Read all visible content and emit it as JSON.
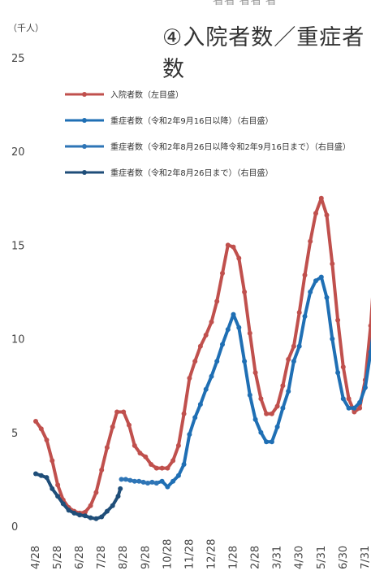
{
  "header": {
    "clipped_text": "者者 者者 者",
    "unit_label": "（千人）",
    "title": "④入院者数／重症者数"
  },
  "chart_data": {
    "type": "line",
    "title": "④入院者数／重症者数",
    "ylabel": "（千人）",
    "ylim": [
      0,
      25
    ],
    "yticks": [
      "0",
      "5",
      "10",
      "15",
      "20",
      "25"
    ],
    "x": [
      "4/28",
      "5/28",
      "6/28",
      "7/28",
      "8/28",
      "9/28",
      "10/28",
      "11/28",
      "12/28",
      "1/28",
      "2/28",
      "3/31",
      "4/30",
      "5/31",
      "6/30",
      "7/31"
    ],
    "grid": false,
    "legend_position": "top-left",
    "series": [
      {
        "name": "入院者数（左目盛）",
        "color": "#c0504d",
        "points": [
          [
            0,
            5.6
          ],
          [
            0.25,
            5.2
          ],
          [
            0.5,
            4.6
          ],
          [
            0.75,
            3.5
          ],
          [
            1,
            2.2
          ],
          [
            1.25,
            1.4
          ],
          [
            1.5,
            1.0
          ],
          [
            1.75,
            0.8
          ],
          [
            2,
            0.7
          ],
          [
            2.25,
            0.75
          ],
          [
            2.5,
            1.1
          ],
          [
            2.75,
            1.8
          ],
          [
            3,
            3.0
          ],
          [
            3.25,
            4.2
          ],
          [
            3.5,
            5.3
          ],
          [
            3.7,
            6.1
          ],
          [
            4,
            6.1
          ],
          [
            4.25,
            5.4
          ],
          [
            4.5,
            4.3
          ],
          [
            4.75,
            3.9
          ],
          [
            5,
            3.7
          ],
          [
            5.25,
            3.3
          ],
          [
            5.5,
            3.1
          ],
          [
            5.75,
            3.1
          ],
          [
            6,
            3.1
          ],
          [
            6.25,
            3.5
          ],
          [
            6.5,
            4.3
          ],
          [
            6.75,
            6.0
          ],
          [
            7,
            7.9
          ],
          [
            7.25,
            8.8
          ],
          [
            7.5,
            9.6
          ],
          [
            7.75,
            10.2
          ],
          [
            8,
            10.9
          ],
          [
            8.25,
            12.0
          ],
          [
            8.5,
            13.5
          ],
          [
            8.75,
            15.0
          ],
          [
            9,
            14.9
          ],
          [
            9.25,
            14.3
          ],
          [
            9.5,
            12.5
          ],
          [
            9.75,
            10.3
          ],
          [
            10,
            8.2
          ],
          [
            10.25,
            6.8
          ],
          [
            10.5,
            6.0
          ],
          [
            10.75,
            6.0
          ],
          [
            11,
            6.4
          ],
          [
            11.25,
            7.5
          ],
          [
            11.5,
            8.9
          ],
          [
            11.75,
            9.6
          ],
          [
            12,
            11.4
          ],
          [
            12.25,
            13.4
          ],
          [
            12.5,
            15.2
          ],
          [
            12.75,
            16.7
          ],
          [
            13,
            17.5
          ],
          [
            13.25,
            16.6
          ],
          [
            13.5,
            14.0
          ],
          [
            13.75,
            11.0
          ],
          [
            14,
            8.5
          ],
          [
            14.25,
            6.8
          ],
          [
            14.5,
            6.1
          ],
          [
            14.75,
            6.3
          ],
          [
            15,
            7.8
          ],
          [
            15.25,
            10.7
          ],
          [
            15.5,
            15.0
          ],
          [
            15.75,
            17.8
          ]
        ]
      },
      {
        "name": "重症者数（令和2年9月16日以降）（右目盛）",
        "color": "#1f6fb4",
        "points": [
          [
            5.5,
            2.3
          ],
          [
            5.75,
            2.4
          ],
          [
            6,
            2.1
          ],
          [
            6.25,
            2.4
          ],
          [
            6.5,
            2.7
          ],
          [
            6.75,
            3.3
          ],
          [
            7,
            4.9
          ],
          [
            7.25,
            5.8
          ],
          [
            7.5,
            6.5
          ],
          [
            7.75,
            7.3
          ],
          [
            8,
            8.0
          ],
          [
            8.25,
            8.8
          ],
          [
            8.5,
            9.7
          ],
          [
            8.75,
            10.5
          ],
          [
            9,
            11.3
          ],
          [
            9.25,
            10.6
          ],
          [
            9.5,
            8.8
          ],
          [
            9.75,
            7.0
          ],
          [
            10,
            5.7
          ],
          [
            10.25,
            5.0
          ],
          [
            10.5,
            4.5
          ],
          [
            10.75,
            4.5
          ],
          [
            11,
            5.3
          ],
          [
            11.25,
            6.3
          ],
          [
            11.5,
            7.2
          ],
          [
            11.75,
            8.8
          ],
          [
            12,
            9.6
          ],
          [
            12.25,
            11.2
          ],
          [
            12.5,
            12.5
          ],
          [
            12.75,
            13.1
          ],
          [
            13,
            13.3
          ],
          [
            13.25,
            12.2
          ],
          [
            13.5,
            10.0
          ],
          [
            13.75,
            8.2
          ],
          [
            14,
            6.8
          ],
          [
            14.25,
            6.3
          ],
          [
            14.5,
            6.3
          ],
          [
            14.75,
            6.6
          ],
          [
            15,
            7.4
          ],
          [
            15.25,
            9.3
          ],
          [
            15.5,
            11.5
          ],
          [
            15.75,
            13.0
          ]
        ]
      },
      {
        "name": "重症者数（令和2年8月26日以降令和2年9月16日まで）（右目盛）",
        "color": "#2e75b6",
        "points": [
          [
            3.9,
            2.5
          ],
          [
            4.1,
            2.5
          ],
          [
            4.3,
            2.45
          ],
          [
            4.5,
            2.4
          ],
          [
            4.7,
            2.4
          ],
          [
            4.9,
            2.35
          ],
          [
            5.1,
            2.3
          ],
          [
            5.3,
            2.35
          ],
          [
            5.5,
            2.3
          ]
        ]
      },
      {
        "name": "重症者数（令和2年8月26日まで）（右目盛）",
        "color": "#1f4e79",
        "points": [
          [
            0,
            2.8
          ],
          [
            0.25,
            2.7
          ],
          [
            0.5,
            2.6
          ],
          [
            0.75,
            2.0
          ],
          [
            1,
            1.6
          ],
          [
            1.25,
            1.2
          ],
          [
            1.5,
            0.85
          ],
          [
            1.75,
            0.7
          ],
          [
            2,
            0.6
          ],
          [
            2.25,
            0.55
          ],
          [
            2.5,
            0.45
          ],
          [
            2.75,
            0.4
          ],
          [
            3,
            0.5
          ],
          [
            3.25,
            0.8
          ],
          [
            3.5,
            1.1
          ],
          [
            3.75,
            1.6
          ],
          [
            3.85,
            2.0
          ]
        ]
      }
    ]
  }
}
